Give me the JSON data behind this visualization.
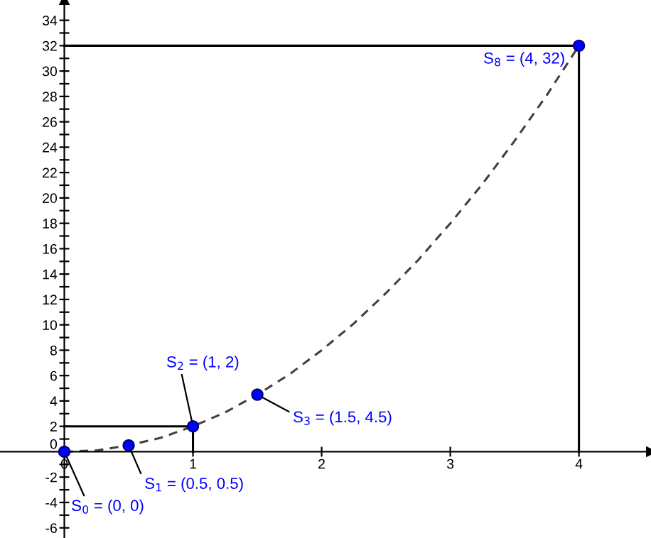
{
  "chart_data": {
    "type": "line",
    "xlim": [
      -0.5,
      4.56
    ],
    "ylim": [
      -6.8,
      35.6
    ],
    "xticks": [
      0,
      1,
      2,
      3,
      4
    ],
    "yticks": [
      -6,
      {
        "value": -5,
        "label": null
      },
      -4,
      {
        "value": -3,
        "label": null
      },
      -2,
      {
        "value": -1,
        "label": null
      },
      0,
      {
        "value": 1,
        "label": null
      },
      2,
      {
        "value": 3,
        "label": null
      },
      4,
      {
        "value": 5,
        "label": null
      },
      6,
      {
        "value": 7,
        "label": null
      },
      8,
      {
        "value": 9,
        "label": null
      },
      10,
      {
        "value": 11,
        "label": null
      },
      12,
      {
        "value": 13,
        "label": null
      },
      14,
      {
        "value": 15,
        "label": null
      },
      16,
      {
        "value": 17,
        "label": null
      },
      18,
      {
        "value": 19,
        "label": null
      },
      20,
      {
        "value": 21,
        "label": null
      },
      22,
      {
        "value": 23,
        "label": null
      },
      24,
      {
        "value": 25,
        "label": null
      },
      26,
      {
        "value": 27,
        "label": null
      },
      28,
      {
        "value": 29,
        "label": null
      },
      30,
      {
        "value": 31,
        "label": null
      },
      32,
      {
        "value": 33,
        "label": null
      },
      34
    ],
    "grid": false,
    "legend": false,
    "series": [
      {
        "line_style": "dashed",
        "marker": "none",
        "color": "#404040",
        "x": [
          0,
          0.25,
          0.5,
          0.75,
          1,
          1.25,
          1.5,
          1.75,
          2,
          2.25,
          2.5,
          2.75,
          3,
          3.25,
          3.5,
          3.75,
          4
        ],
        "values": [
          0,
          0.1,
          0.5,
          1.1,
          2,
          3.1,
          4.5,
          6.1,
          8,
          10.1,
          12.5,
          15.1,
          18,
          21.1,
          24.5,
          28.1,
          32
        ]
      },
      {
        "line_style": "solid",
        "marker": "none",
        "color": "#000000",
        "x": [
          0,
          1,
          1
        ],
        "values": [
          2,
          2,
          0
        ]
      },
      {
        "line_style": "solid",
        "marker": "none",
        "color": "#000000",
        "x": [
          0,
          4,
          4
        ],
        "values": [
          32,
          32,
          0
        ]
      },
      {
        "type": "scatter",
        "marker": "circle",
        "color": "#0000ff",
        "x": [
          0,
          0.5,
          1,
          1.5,
          4
        ],
        "values": [
          0,
          0.5,
          2,
          4.5,
          32
        ]
      }
    ],
    "annotations": [
      {
        "text": "S$_{0}$ = (0, 0)",
        "x": 0,
        "y": 0
      },
      {
        "text": "S$_{1}$ = (0.5, 0.5)",
        "x": 0.5,
        "y": 0.5
      },
      {
        "text": "S$_{2}$ = (1, 2)",
        "x": 1,
        "y": 2
      },
      {
        "text": "S$_{3}$ = (1.5, 4.5)",
        "x": 1.5,
        "y": 4.5
      },
      {
        "text": "S$_{8}$ = (4, 32)",
        "x": 4,
        "y": 32
      }
    ]
  }
}
